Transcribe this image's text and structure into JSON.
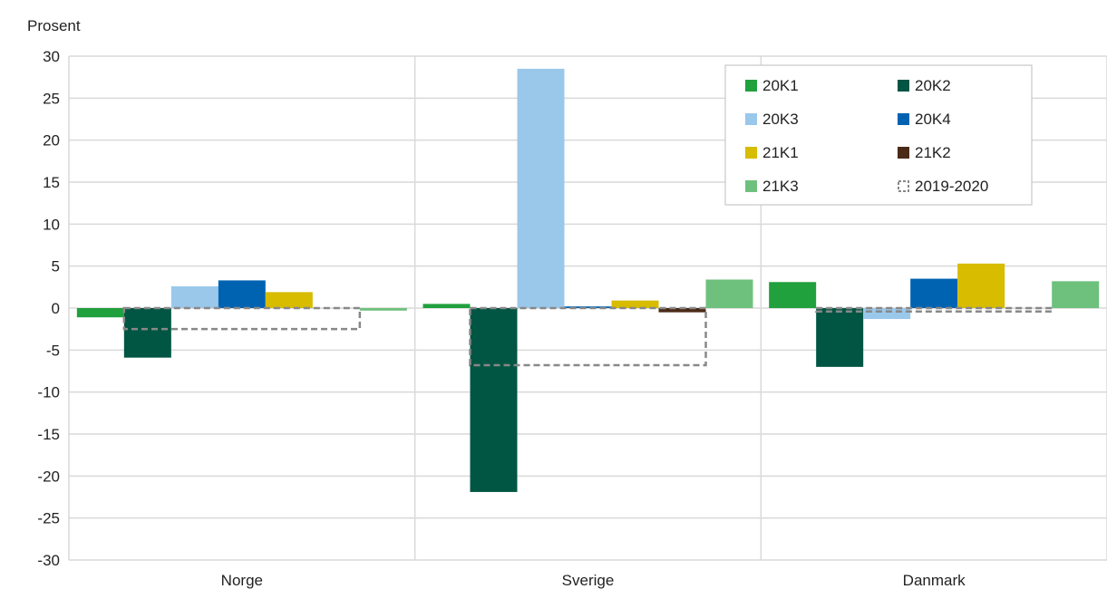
{
  "chart_data": {
    "type": "bar",
    "ylabel": "Prosent",
    "ylim": [
      -30,
      30
    ],
    "ytick_step": 5,
    "grid": true,
    "legend_position": "top-right",
    "categories": [
      "Norge",
      "Sverige",
      "Danmark"
    ],
    "series": [
      {
        "name": "20K1",
        "color": "#21a03e",
        "values": [
          -1.1,
          0.5,
          3.1
        ]
      },
      {
        "name": "20K2",
        "color": "#005543",
        "values": [
          -5.9,
          -21.9,
          -7.0
        ]
      },
      {
        "name": "20K3",
        "color": "#9ac8eb",
        "values": [
          2.6,
          28.5,
          -1.3
        ]
      },
      {
        "name": "20K4",
        "color": "#0063b1",
        "values": [
          3.3,
          0.2,
          3.5
        ]
      },
      {
        "name": "21K1",
        "color": "#d7bc00",
        "values": [
          1.9,
          0.9,
          5.3
        ]
      },
      {
        "name": "21K2",
        "color": "#4a2a17",
        "values": [
          0.0,
          -0.5,
          0.0
        ]
      },
      {
        "name": "21K3",
        "color": "#6ec17d",
        "values": [
          -0.3,
          3.4,
          3.2
        ]
      }
    ],
    "reference": {
      "name": "2019-2020",
      "color": "#888888",
      "style": "dashed",
      "values": [
        -2.5,
        -6.8,
        -0.4
      ]
    }
  }
}
